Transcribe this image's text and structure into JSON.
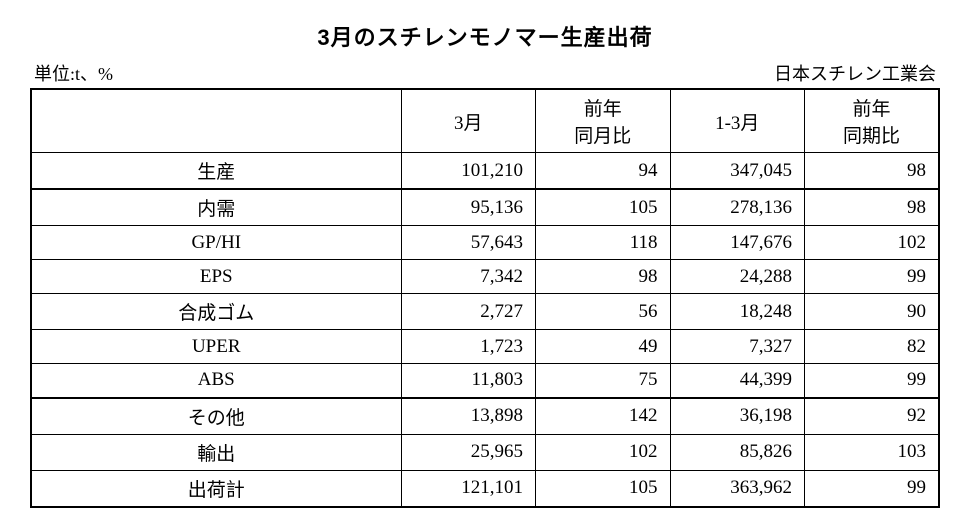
{
  "title": "3月のスチレンモノマー生産出荷",
  "unit_label": "単位:t、%",
  "source_label": "日本スチレン工業会",
  "table": {
    "columns": [
      "",
      "3月",
      "前年\n同月比",
      "1-3月",
      "前年\n同期比"
    ],
    "rows": [
      {
        "label": "生産",
        "march": "101,210",
        "yoy_m": "94",
        "q1": "347,045",
        "yoy_q": "98",
        "heavy_divider_after": true
      },
      {
        "label": "内需",
        "march": "95,136",
        "yoy_m": "105",
        "q1": "278,136",
        "yoy_q": "98"
      },
      {
        "label": "GP/HI",
        "march": "57,643",
        "yoy_m": "118",
        "q1": "147,676",
        "yoy_q": "102"
      },
      {
        "label": "EPS",
        "march": "7,342",
        "yoy_m": "98",
        "q1": "24,288",
        "yoy_q": "99"
      },
      {
        "label": "合成ゴム",
        "march": "2,727",
        "yoy_m": "56",
        "q1": "18,248",
        "yoy_q": "90"
      },
      {
        "label": "UPER",
        "march": "1,723",
        "yoy_m": "49",
        "q1": "7,327",
        "yoy_q": "82"
      },
      {
        "label": "ABS",
        "march": "11,803",
        "yoy_m": "75",
        "q1": "44,399",
        "yoy_q": "99",
        "heavy_divider_after": true
      },
      {
        "label": "その他",
        "march": "13,898",
        "yoy_m": "142",
        "q1": "36,198",
        "yoy_q": "92"
      },
      {
        "label": "輸出",
        "march": "25,965",
        "yoy_m": "102",
        "q1": "85,826",
        "yoy_q": "103"
      },
      {
        "label": "出荷計",
        "march": "121,101",
        "yoy_m": "105",
        "q1": "363,962",
        "yoy_q": "99"
      }
    ],
    "border_color": "#000000",
    "background_color": "#ffffff",
    "font_size_title": 22,
    "font_size_body": 19
  }
}
